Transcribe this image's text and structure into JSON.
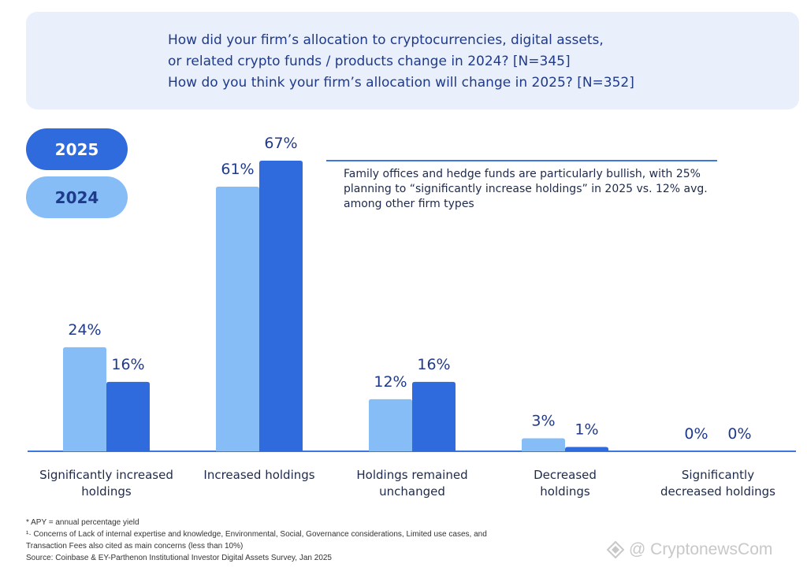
{
  "header": {
    "line1": "How did your firm’s allocation to cryptocurrencies, digital assets,",
    "line2": "or related crypto funds / products change in 2024? [N=345]",
    "line3": "How do you think your firm’s allocation will change in 2025? [N=352]"
  },
  "legend": {
    "year_2025": "2025",
    "year_2024": "2024"
  },
  "callout": {
    "text": "Family offices and hedge funds are particularly bullish, with 25% planning to “significantly increase holdings” in 2025 vs. 12% avg. among other firm types"
  },
  "chart_data": {
    "type": "bar",
    "categories": [
      [
        "Significantly increased",
        "holdings"
      ],
      [
        "Increased holdings"
      ],
      [
        "Holdings remained",
        "unchanged"
      ],
      [
        "Decreased",
        "holdings"
      ],
      [
        "Significantly",
        "decreased holdings"
      ]
    ],
    "series": [
      {
        "name": "2024",
        "values": [
          24,
          61,
          12,
          3,
          0
        ],
        "labels": [
          "24%",
          "61%",
          "12%",
          "3%",
          "0%"
        ],
        "color": "#86bdf6"
      },
      {
        "name": "2025",
        "values": [
          16,
          67,
          16,
          1,
          0
        ],
        "labels": [
          "16%",
          "67%",
          "16%",
          "1%",
          "0%"
        ],
        "color": "#2f6bdc"
      }
    ],
    "ylim": [
      0,
      67
    ],
    "axis_color": "#3a78e0"
  },
  "footnotes": {
    "f1": "* APY = annual percentage yield",
    "f2": "¹· Concerns of Lack of internal expertise and knowledge, Environmental, Social, Governance considerations, Limited use cases, and",
    "f3": "Transaction Fees also cited as main concerns (less than 10%)",
    "f4": "Source: Coinbase & EY-Parthenon Institutional Investor Digital Assets Survey, Jan 2025"
  },
  "watermark": {
    "text": "@ CryptonewsCom"
  }
}
